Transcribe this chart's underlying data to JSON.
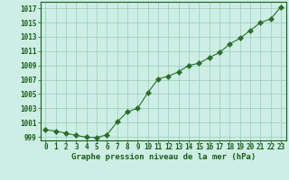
{
  "x": [
    0,
    1,
    2,
    3,
    4,
    5,
    6,
    7,
    8,
    9,
    10,
    11,
    12,
    13,
    14,
    15,
    16,
    17,
    18,
    19,
    20,
    21,
    22,
    23
  ],
  "y": [
    1000.0,
    999.8,
    999.5,
    999.2,
    998.95,
    998.9,
    999.3,
    1001.1,
    1002.5,
    1003.0,
    1005.2,
    1007.1,
    1007.5,
    1008.1,
    1009.0,
    1009.3,
    1010.1,
    1010.8,
    1012.0,
    1012.8,
    1013.9,
    1015.0,
    1015.5,
    1017.2
  ],
  "line_color": "#2a6e2a",
  "marker_color": "#2a6e2a",
  "bg_color": "#cceee4",
  "grid_color": "#99ccbb",
  "text_color": "#1a5c1a",
  "xlabel": "Graphe pression niveau de la mer (hPa)",
  "ylim": [
    998.5,
    1017.9
  ],
  "yticks": [
    999,
    1001,
    1003,
    1005,
    1007,
    1009,
    1011,
    1013,
    1015,
    1017
  ],
  "xticks": [
    0,
    1,
    2,
    3,
    4,
    5,
    6,
    7,
    8,
    9,
    10,
    11,
    12,
    13,
    14,
    15,
    16,
    17,
    18,
    19,
    20,
    21,
    22,
    23
  ],
  "xtick_labels": [
    "0",
    "1",
    "2",
    "3",
    "4",
    "5",
    "6",
    "7",
    "8",
    "9",
    "10",
    "11",
    "12",
    "13",
    "14",
    "15",
    "16",
    "17",
    "18",
    "19",
    "20",
    "21",
    "22",
    "23"
  ],
  "tick_fontsize": 5.5,
  "xlabel_fontsize": 6.5,
  "marker_size": 3
}
